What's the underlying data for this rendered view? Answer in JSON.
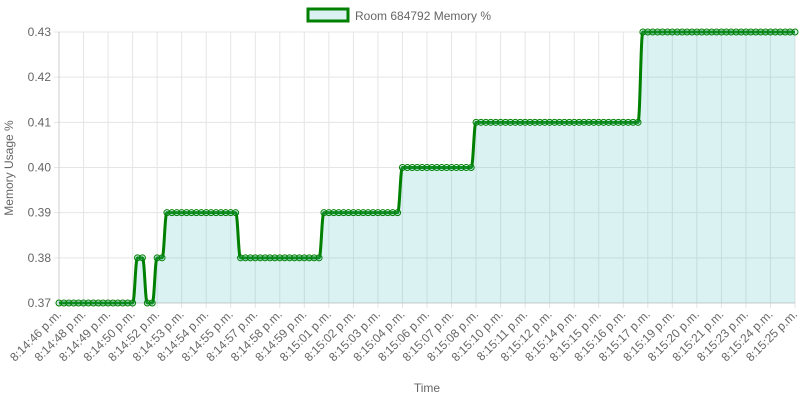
{
  "chart_data": {
    "type": "line",
    "legend_position": "top",
    "x_label": "Time",
    "y_label": "Memory Usage %",
    "categories": [
      "8:14:46 p.m.",
      null,
      null,
      null,
      null,
      "8:14:48 p.m.",
      null,
      null,
      null,
      null,
      "8:14:49 p.m.",
      null,
      null,
      null,
      null,
      "8:14:50 p.m.",
      null,
      null,
      null,
      null,
      "8:14:52 p.m.",
      null,
      null,
      null,
      null,
      "8:14:53 p.m.",
      null,
      null,
      null,
      null,
      "8:14:54 p.m.",
      null,
      null,
      null,
      null,
      "8:14:55 p.m.",
      null,
      null,
      null,
      null,
      "8:14:57 p.m.",
      null,
      null,
      null,
      null,
      "8:14:58 p.m.",
      null,
      null,
      null,
      null,
      "8:14:59 p.m.",
      null,
      null,
      null,
      null,
      "8:15:01 p.m.",
      null,
      null,
      null,
      null,
      "8:15:02 p.m.",
      null,
      null,
      null,
      null,
      "8:15:03 p.m.",
      null,
      null,
      null,
      null,
      "8:15:04 p.m.",
      null,
      null,
      null,
      null,
      "8:15:06 p.m.",
      null,
      null,
      null,
      null,
      "8:15:07 p.m.",
      null,
      null,
      null,
      null,
      "8:15:08 p.m.",
      null,
      null,
      null,
      null,
      "8:15:10 p.m.",
      null,
      null,
      null,
      null,
      "8:15:11 p.m.",
      null,
      null,
      null,
      null,
      "8:15:12 p.m.",
      null,
      null,
      null,
      null,
      "8:15:14 p.m.",
      null,
      null,
      null,
      null,
      "8:15:15 p.m.",
      null,
      null,
      null,
      null,
      "8:15:16 p.m.",
      null,
      null,
      null,
      null,
      "8:15:17 p.m.",
      null,
      null,
      null,
      null,
      "8:15:19 p.m.",
      null,
      null,
      null,
      null,
      "8:15:20 p.m.",
      null,
      null,
      null,
      null,
      "8:15:21 p.m.",
      null,
      null,
      null,
      null,
      "8:15:23 p.m.",
      null,
      null,
      null,
      null,
      "8:15:24 p.m.",
      null,
      null,
      null,
      null,
      "8:15:25 p.m."
    ],
    "series": [
      {
        "name": "Room 684792 Memory %",
        "color": "green",
        "fill": "rgba(75,192,192,0.2)",
        "values": [
          0.37,
          0.37,
          0.37,
          0.37,
          0.37,
          0.37,
          0.37,
          0.37,
          0.37,
          0.37,
          0.37,
          0.37,
          0.37,
          0.37,
          0.37,
          0.37,
          0.38,
          0.38,
          0.37,
          0.37,
          0.38,
          0.38,
          0.39,
          0.39,
          0.39,
          0.39,
          0.39,
          0.39,
          0.39,
          0.39,
          0.39,
          0.39,
          0.39,
          0.39,
          0.39,
          0.39,
          0.39,
          0.38,
          0.38,
          0.38,
          0.38,
          0.38,
          0.38,
          0.38,
          0.38,
          0.38,
          0.38,
          0.38,
          0.38,
          0.38,
          0.38,
          0.38,
          0.38,
          0.38,
          0.39,
          0.39,
          0.39,
          0.39,
          0.39,
          0.39,
          0.39,
          0.39,
          0.39,
          0.39,
          0.39,
          0.39,
          0.39,
          0.39,
          0.39,
          0.39,
          0.4,
          0.4,
          0.4,
          0.4,
          0.4,
          0.4,
          0.4,
          0.4,
          0.4,
          0.4,
          0.4,
          0.4,
          0.4,
          0.4,
          0.4,
          0.41,
          0.41,
          0.41,
          0.41,
          0.41,
          0.41,
          0.41,
          0.41,
          0.41,
          0.41,
          0.41,
          0.41,
          0.41,
          0.41,
          0.41,
          0.41,
          0.41,
          0.41,
          0.41,
          0.41,
          0.41,
          0.41,
          0.41,
          0.41,
          0.41,
          0.41,
          0.41,
          0.41,
          0.41,
          0.41,
          0.41,
          0.41,
          0.41,
          0.41,
          0.43,
          0.43,
          0.43,
          0.43,
          0.43,
          0.43,
          0.43,
          0.43,
          0.43,
          0.43,
          0.43,
          0.43,
          0.43,
          0.43,
          0.43,
          0.43,
          0.43,
          0.43,
          0.43,
          0.43,
          0.43,
          0.43,
          0.43,
          0.43,
          0.43,
          0.43,
          0.43,
          0.43,
          0.43,
          0.43,
          0.43,
          0.43
        ]
      }
    ],
    "ylim": [
      0.37,
      0.43
    ],
    "yticks": [
      0.37,
      0.38,
      0.39,
      {
        "value": 0.4,
        "label": "0.40"
      },
      0.41,
      0.42,
      0.43
    ],
    "grid": true
  }
}
